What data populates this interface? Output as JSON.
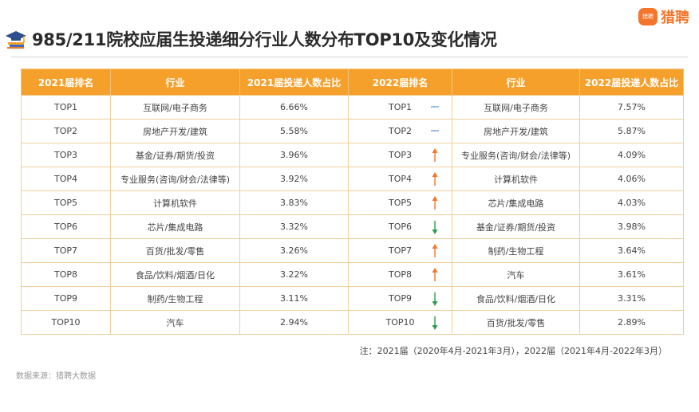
{
  "logo": {
    "text": "猎聘",
    "mark_text": "猎聘"
  },
  "title": "985/211院校应届生投递细分行业人数分布TOP10及变化情况",
  "colors": {
    "header_bg": "#f6a02c",
    "up": "#f3762c",
    "down": "#2e9e4a",
    "flat": "#5b8fd6",
    "border": "#f0cf9c"
  },
  "chart_data": {
    "type": "table",
    "title": "985/211院校应届生投递细分行业人数分布TOP10及变化情况",
    "columns": [
      "2021届排名",
      "行业",
      "2021届投递人数占比",
      "2022届排名",
      "行业",
      "2022届投递人数占比"
    ],
    "rows": [
      {
        "rank2021": "TOP1",
        "industry2021": "互联网/电子商务",
        "share2021": "6.66%",
        "rank2022": "TOP1",
        "trend": "flat",
        "industry2022": "互联网/电子商务",
        "share2022": "7.57%"
      },
      {
        "rank2021": "TOP2",
        "industry2021": "房地产开发/建筑",
        "share2021": "5.58%",
        "rank2022": "TOP2",
        "trend": "flat",
        "industry2022": "房地产开发/建筑",
        "share2022": "5.87%"
      },
      {
        "rank2021": "TOP3",
        "industry2021": "基金/证券/期货/投资",
        "share2021": "3.96%",
        "rank2022": "TOP3",
        "trend": "up",
        "industry2022": "专业服务(咨询/财会/法律等)",
        "share2022": "4.09%"
      },
      {
        "rank2021": "TOP4",
        "industry2021": "专业服务(咨询/财会/法律等)",
        "share2021": "3.92%",
        "rank2022": "TOP4",
        "trend": "up",
        "industry2022": "计算机软件",
        "share2022": "4.06%"
      },
      {
        "rank2021": "TOP5",
        "industry2021": "计算机软件",
        "share2021": "3.83%",
        "rank2022": "TOP5",
        "trend": "up",
        "industry2022": "芯片/集成电路",
        "share2022": "4.03%"
      },
      {
        "rank2021": "TOP6",
        "industry2021": "芯片/集成电路",
        "share2021": "3.32%",
        "rank2022": "TOP6",
        "trend": "down",
        "industry2022": "基金/证券/期货/投资",
        "share2022": "3.98%"
      },
      {
        "rank2021": "TOP7",
        "industry2021": "百货/批发/零售",
        "share2021": "3.26%",
        "rank2022": "TOP7",
        "trend": "up",
        "industry2022": "制药/生物工程",
        "share2022": "3.64%"
      },
      {
        "rank2021": "TOP8",
        "industry2021": "食品/饮料/烟酒/日化",
        "share2021": "3.22%",
        "rank2022": "TOP8",
        "trend": "up",
        "industry2022": "汽车",
        "share2022": "3.61%"
      },
      {
        "rank2021": "TOP9",
        "industry2021": "制药/生物工程",
        "share2021": "3.11%",
        "rank2022": "TOP9",
        "trend": "down",
        "industry2022": "食品/饮料/烟酒/日化",
        "share2022": "3.31%"
      },
      {
        "rank2021": "TOP10",
        "industry2021": "汽车",
        "share2021": "2.94%",
        "rank2022": "TOP10",
        "trend": "down",
        "industry2022": "百货/批发/零售",
        "share2022": "2.89%"
      }
    ]
  },
  "note": "注：2021届（2020年4月-2021年3月），2022届（2021年4月-2022年3月）",
  "source": "数据来源：猎聘大数据"
}
